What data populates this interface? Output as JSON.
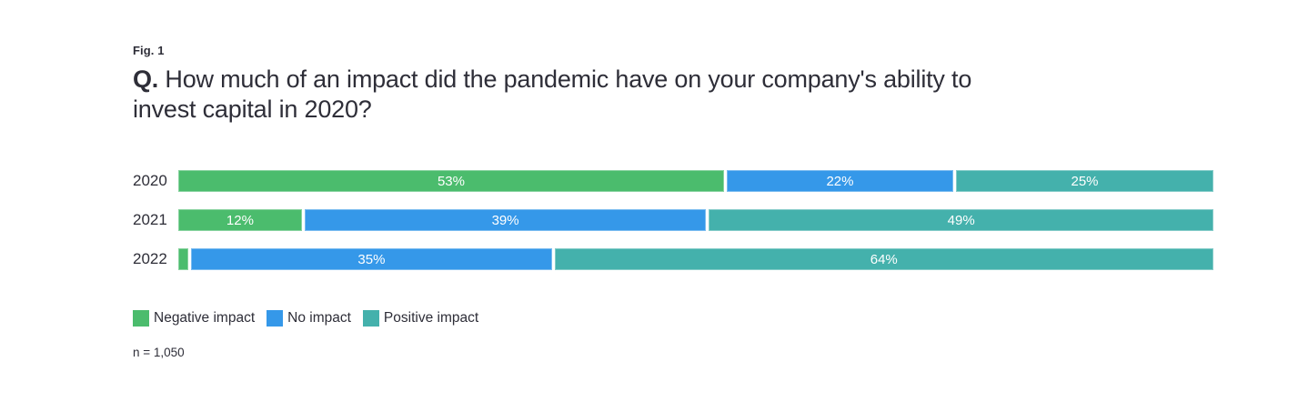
{
  "figure": {
    "fig_label": "Fig. 1",
    "question_prefix": "Q.",
    "title_line1": "How much of an impact did the pandemic have on your company's ability to",
    "title_line2": "invest capital in 2020?",
    "sample_label": "n = 1,050"
  },
  "colors": {
    "text": "#2e2e38",
    "negative_impact": "#4bbc6d",
    "no_impact": "#3598e9",
    "positive_impact": "#44b1ac",
    "bar_value_label": "#ffffff",
    "background": "#ffffff"
  },
  "chart_data": {
    "type": "bar",
    "variant": "horizontal-stacked",
    "title": "Q. How much of an impact did the pandemic have on your company's ability to invest capital in 2020?",
    "categories": [
      "2020",
      "2021",
      "2022"
    ],
    "series": [
      {
        "name": "Negative impact",
        "color": "#4bbc6d",
        "values": [
          53,
          12,
          1
        ]
      },
      {
        "name": "No impact",
        "color": "#3598e9",
        "values": [
          22,
          39,
          35
        ]
      },
      {
        "name": "Positive impact",
        "color": "#44b1ac",
        "values": [
          25,
          49,
          64
        ]
      }
    ],
    "value_suffix": "%",
    "xlim": [
      0,
      100
    ],
    "grid": false,
    "legend_position": "bottom",
    "bar_labels": "inside-center",
    "min_value_for_label": 5
  }
}
